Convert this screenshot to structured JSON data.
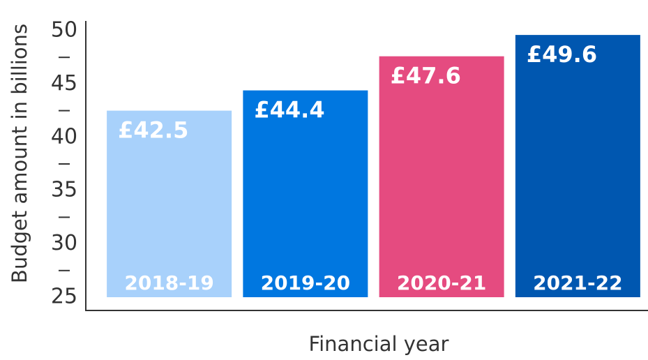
{
  "chart_data": {
    "type": "bar",
    "categories": [
      "2018-19",
      "2019-20",
      "2020-21",
      "2021-22"
    ],
    "values": [
      42.5,
      44.4,
      47.6,
      49.6
    ],
    "value_labels": [
      "£42.5",
      "£44.4",
      "£47.6",
      "£49.6"
    ],
    "colors": [
      "#a8d1fb",
      "#0077e0",
      "#e54b80",
      "#0057b0"
    ],
    "ylim": [
      25,
      50
    ],
    "yticks": [
      25,
      30,
      35,
      40,
      45,
      50
    ],
    "minor_yticks": [
      27.5,
      32.5,
      37.5,
      42.5,
      47.5
    ],
    "ylabel": "Budget amount in billions",
    "xlabel": "Financial year"
  }
}
